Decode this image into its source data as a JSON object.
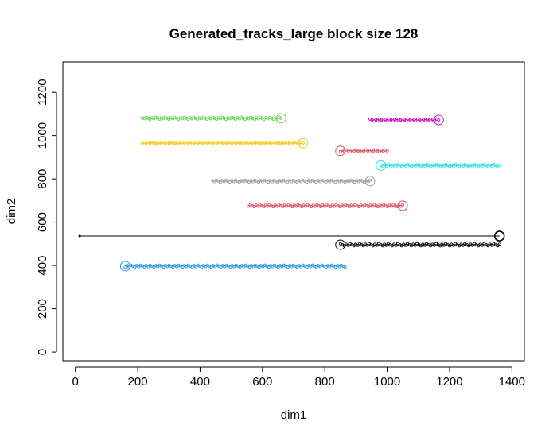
{
  "chart_data": {
    "type": "scatter",
    "title": "Generated_tracks_large block size 128",
    "xlabel": "dim1",
    "ylabel": "dim2",
    "xlim": [
      -40,
      1440
    ],
    "ylim": [
      -40,
      1340
    ],
    "x_ticks": [
      0,
      200,
      400,
      600,
      800,
      1000,
      1200,
      1400
    ],
    "y_ticks": [
      0,
      200,
      400,
      600,
      800,
      1000,
      1200
    ],
    "x_tick_labels": [
      "0",
      "200",
      "400",
      "600",
      "800",
      "1000",
      "1200",
      "1400"
    ],
    "y_tick_labels": [
      "0",
      "200",
      "400",
      "600",
      "800",
      "1000",
      "1200"
    ],
    "grid": false,
    "legend": "none",
    "series": [
      {
        "color": "#000000",
        "x_range": [
          850,
          1360
        ],
        "y": 496,
        "end": [
          1360,
          536
        ],
        "start_marker": [
          850,
          496
        ],
        "extra_line": [
          [
            14,
            536
          ],
          [
            1360,
            536
          ]
        ]
      },
      {
        "color": "#DF536B",
        "x_range": [
          555,
          1050
        ],
        "y": 676,
        "start_marker": [
          1050,
          676
        ]
      },
      {
        "color": "#61D04F",
        "x_range": [
          215,
          660
        ],
        "y": 1080,
        "start_marker": [
          660,
          1080
        ]
      },
      {
        "color": "#2297E6",
        "x_range": [
          160,
          865
        ],
        "y": 397,
        "start_marker": [
          160,
          397
        ]
      },
      {
        "color": "#28E2E5",
        "x_range": [
          980,
          1360
        ],
        "y": 862,
        "start_marker": [
          980,
          862
        ]
      },
      {
        "color": "#CD0BBC",
        "x_range": [
          945,
          1165
        ],
        "y": 1072,
        "start_marker": [
          1165,
          1072
        ]
      },
      {
        "color": "#F5C710",
        "x_range": [
          215,
          730
        ],
        "y": 965,
        "start_marker": [
          730,
          965
        ]
      },
      {
        "color": "#9E9E9E",
        "x_range": [
          440,
          945
        ],
        "y": 790,
        "start_marker": [
          945,
          790
        ]
      },
      {
        "color": "#DF536B",
        "x_range": [
          850,
          1000
        ],
        "y": 930,
        "start_marker": [
          850,
          930
        ]
      }
    ]
  }
}
